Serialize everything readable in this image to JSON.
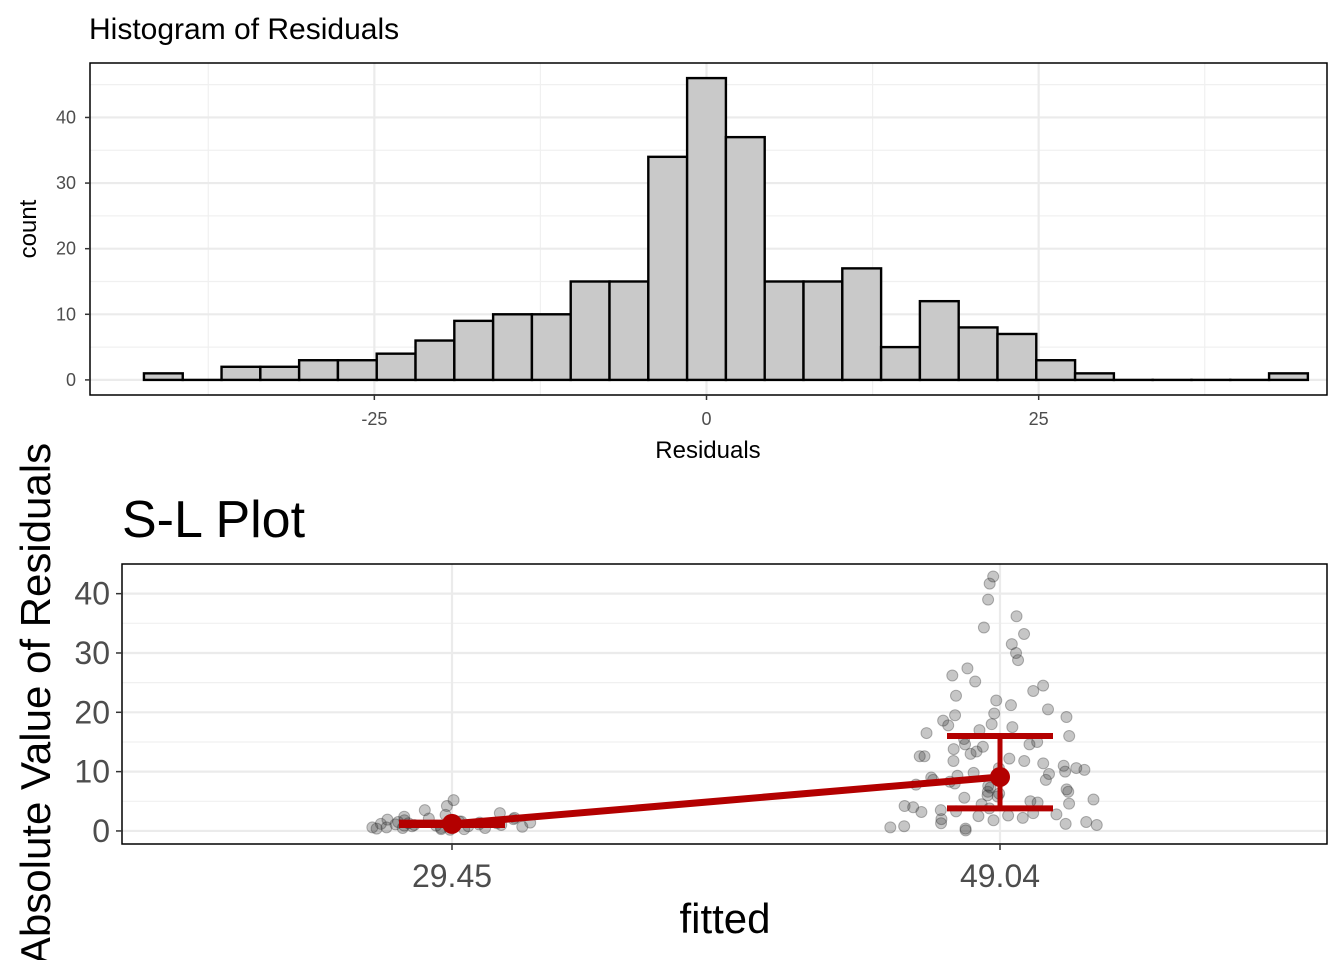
{
  "chart_data": [
    {
      "type": "bar",
      "title": "Histogram of Residuals",
      "xlabel": "Residuals",
      "ylabel": "count",
      "xlim": [
        -46.4,
        46.7
      ],
      "ylim": [
        -2.3,
        48.3
      ],
      "x_ticks": [
        -25,
        0,
        25
      ],
      "x_tick_labels": [
        "-25",
        "0",
        "25"
      ],
      "y_ticks": [
        0,
        10,
        20,
        30,
        40
      ],
      "y_tick_labels": [
        "0",
        "10",
        "20",
        "30",
        "40"
      ],
      "bin_width": 2.92,
      "bin_starts": [
        -42.34,
        -39.42,
        -36.5,
        -33.58,
        -30.66,
        -27.74,
        -24.82,
        -21.9,
        -18.98,
        -16.06,
        -13.14,
        -10.22,
        -7.3,
        -4.38,
        -1.46,
        1.46,
        4.38,
        7.3,
        10.22,
        13.14,
        16.06,
        18.98,
        21.9,
        24.82,
        27.74,
        30.66,
        33.58,
        36.5,
        39.42,
        42.34
      ],
      "values": [
        1,
        0,
        2,
        2,
        3,
        3,
        4,
        6,
        9,
        10,
        10,
        15,
        15,
        34,
        46,
        37,
        15,
        15,
        17,
        5,
        12,
        8,
        7,
        3,
        1,
        0,
        0,
        0,
        0,
        1
      ],
      "bar_fill": "#c9c9c9",
      "bar_stroke": "#000000",
      "grid": true
    },
    {
      "type": "scatter",
      "title": "S-L Plot",
      "xlabel": "fitted",
      "ylabel": "Absolute Value of Residuals",
      "categories": [
        "29.45",
        "49.04"
      ],
      "ylim": [
        -2.2,
        45.0
      ],
      "y_ticks": [
        0,
        10,
        20,
        30,
        40
      ],
      "y_tick_labels": [
        "0",
        "10",
        "20",
        "30",
        "40"
      ],
      "means": [
        1.2,
        9.1
      ],
      "error_bars": [
        {
          "category": "29.45",
          "lower": 1.0,
          "upper": 1.4
        },
        {
          "category": "49.04",
          "lower": 3.8,
          "upper": 16.0
        }
      ],
      "points": [
        {
          "category": "29.45",
          "values": [
            0.2,
            0.3,
            0.4,
            0.5,
            0.5,
            0.6,
            0.6,
            0.7,
            0.8,
            0.9,
            1.0,
            1.0,
            1.1,
            1.2,
            1.2,
            1.3,
            1.4,
            1.5,
            1.6,
            1.7,
            1.8,
            1.9,
            2.0,
            2.2,
            2.4,
            2.7,
            3.0,
            3.5,
            4.2,
            5.2,
            0.5,
            0.8,
            1.1,
            1.4,
            0.3,
            0.9,
            1.6,
            2.1,
            0.6,
            1.3
          ]
        },
        {
          "category": "49.04",
          "values": [
            0.1,
            0.4,
            0.8,
            1.0,
            1.3,
            1.5,
            1.8,
            2.0,
            2.2,
            2.5,
            2.8,
            3.0,
            3.2,
            3.5,
            3.8,
            4.0,
            4.2,
            4.5,
            4.8,
            5.0,
            5.3,
            5.6,
            6.0,
            6.3,
            6.6,
            7.0,
            7.3,
            7.6,
            8.0,
            8.3,
            8.6,
            9.0,
            9.3,
            9.6,
            10.0,
            10.3,
            10.6,
            11.0,
            11.4,
            11.8,
            12.2,
            12.6,
            13.0,
            13.4,
            13.8,
            14.2,
            14.6,
            15.0,
            15.5,
            16.0,
            16.5,
            17.0,
            17.5,
            18.0,
            18.6,
            19.2,
            19.8,
            20.5,
            21.2,
            22.0,
            22.8,
            23.6,
            24.5,
            25.2,
            26.2,
            27.4,
            28.8,
            30.0,
            31.5,
            33.2,
            34.3,
            36.2,
            39.0,
            41.7,
            42.9,
            0.6,
            2.6,
            4.6,
            6.6,
            8.6,
            10.6,
            12.6,
            14.6,
            5.8,
            7.8,
            9.8,
            11.8,
            3.3,
            1.2,
            17.8,
            19.5
          ]
        }
      ],
      "line_color": "#b30000",
      "point_color": "#333333",
      "grid": true
    }
  ]
}
